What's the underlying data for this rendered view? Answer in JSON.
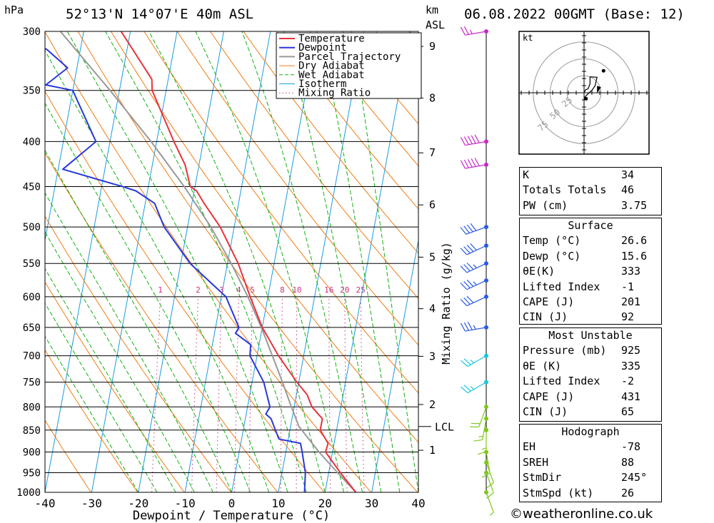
{
  "header": {
    "location": "52°13'N 14°07'E 40m ASL",
    "datetime": "06.08.2022 00GMT (Base: 12)",
    "p_unit": "hPa",
    "km_unit": "km",
    "asl": "ASL"
  },
  "footer": "©weatheronline.co.uk",
  "chart_data": {
    "type": "line",
    "title": "52°13'N 14°07'E 40m ASL",
    "xlabel": "Dewpoint / Temperature (°C)",
    "ylabel": "hPa",
    "y2label": "Mixing Ratio (g/kg)",
    "xlim": [
      -40,
      40
    ],
    "ylim": [
      1000,
      300
    ],
    "skew_deg_per_decade": 35,
    "x_ticks": [
      "-40",
      "-30",
      "-20",
      "-10",
      "0",
      "10",
      "20",
      "30",
      "40"
    ],
    "p_levels": [
      300,
      350,
      400,
      450,
      500,
      550,
      600,
      650,
      700,
      750,
      800,
      850,
      900,
      950,
      1000
    ],
    "km_ticks": [
      {
        "label": "9",
        "p": 312
      },
      {
        "label": "8",
        "p": 357
      },
      {
        "label": "7",
        "p": 412
      },
      {
        "label": "6",
        "p": 472
      },
      {
        "label": "5",
        "p": 541
      },
      {
        "label": "4",
        "p": 619
      },
      {
        "label": "3",
        "p": 701
      },
      {
        "label": "2",
        "p": 795
      },
      {
        "label": "1",
        "p": 896
      }
    ],
    "lcl": {
      "label": "LCL",
      "p": 842
    },
    "mixing_ratio_labels": [
      "1",
      "2",
      "3",
      "4",
      "5",
      "8",
      "10",
      "16",
      "20",
      "25"
    ],
    "mixing_ratio_values": [
      1,
      2,
      3,
      4,
      5,
      8,
      10,
      16,
      20,
      25
    ],
    "legend": [
      "Temperature",
      "Dewpoint",
      "Parcel Trajectory",
      "Dry Adiabat",
      "Wet Adiabat",
      "Isotherm",
      "Mixing Ratio"
    ],
    "colors": {
      "temperature": "#e8333a",
      "dewpoint": "#2838d9",
      "parcel": "#999999",
      "dry_adiabat": "#f07c14",
      "wet_adiabat": "#12b012",
      "isotherm": "#1a9ce0",
      "mixing_ratio": "#c8327c"
    },
    "series": [
      {
        "name": "Temperature",
        "p": [
          1000,
          950,
          900,
          880,
          850,
          825,
          800,
          775,
          750,
          700,
          650,
          600,
          550,
          500,
          470,
          455,
          450,
          425,
          400,
          350,
          340,
          300
        ],
        "values": [
          26.6,
          22.5,
          18.5,
          18.7,
          16.5,
          16.5,
          13.8,
          12.3,
          9.6,
          4.6,
          0.0,
          -3.8,
          -7.7,
          -13.0,
          -17.4,
          -19.5,
          -21.0,
          -23.0,
          -26.3,
          -33.0,
          -33.5,
          -42.0
        ]
      },
      {
        "name": "Dewpoint",
        "p": [
          1000,
          950,
          900,
          880,
          870,
          850,
          825,
          815,
          800,
          750,
          700,
          680,
          660,
          650,
          600,
          550,
          500,
          470,
          455,
          450,
          430,
          400,
          350,
          345,
          330,
          315,
          300
        ],
        "values": [
          15.6,
          15.0,
          13.5,
          12.8,
          8.0,
          6.9,
          5.5,
          4.2,
          4.8,
          2.5,
          -1.5,
          -1.8,
          -5.5,
          -5.0,
          -9.0,
          -18.0,
          -25.0,
          -28.0,
          -32.5,
          -35.5,
          -49.0,
          -43.0,
          -50.0,
          -56.0,
          -52.0,
          -57.0,
          -64.0
        ]
      },
      {
        "name": "Parcel Trajectory",
        "p": [
          1000,
          950,
          900,
          842,
          800,
          750,
          700,
          650,
          600,
          550,
          500,
          450,
          400,
          350,
          300
        ],
        "values": [
          26.6,
          21.9,
          17.1,
          11.8,
          9.4,
          6.5,
          3.3,
          -0.2,
          -4.3,
          -9.2,
          -15.0,
          -22.3,
          -31.2,
          -42.0,
          -55.0
        ]
      }
    ],
    "hodograph": {
      "unit_label": "kt",
      "ring_labels": [
        "25",
        "50",
        "75"
      ],
      "points": [
        [
          0.95,
          1.03
        ],
        [
          1.09,
          0.99
        ],
        [
          1.11,
          0.75
        ],
        [
          1.0,
          0.5
        ],
        [
          1.22,
          0.67
        ],
        [
          1.72,
          0.78
        ],
        [
          1.6,
          0.45
        ],
        [
          1.85,
          0.5
        ],
        [
          1.52,
          0.25
        ],
        [
          1.75,
          0.35
        ],
        [
          1.55,
          1.45
        ],
        [
          1.9,
          1.05
        ]
      ]
    },
    "wind_barbs": [
      {
        "p": 300,
        "speed_kt": 25,
        "dir_deg": 260
      },
      {
        "p": 400,
        "speed_kt": 50,
        "dir_deg": 260
      },
      {
        "p": 425,
        "speed_kt": 50,
        "dir_deg": 260
      },
      {
        "p": 500,
        "speed_kt": 40,
        "dir_deg": 250
      },
      {
        "p": 525,
        "speed_kt": 40,
        "dir_deg": 245
      },
      {
        "p": 550,
        "speed_kt": 35,
        "dir_deg": 245
      },
      {
        "p": 575,
        "speed_kt": 35,
        "dir_deg": 245
      },
      {
        "p": 600,
        "speed_kt": 30,
        "dir_deg": 245
      },
      {
        "p": 650,
        "speed_kt": 35,
        "dir_deg": 260
      },
      {
        "p": 700,
        "speed_kt": 25,
        "dir_deg": 240
      },
      {
        "p": 750,
        "speed_kt": 25,
        "dir_deg": 240
      },
      {
        "p": 800,
        "speed_kt": 20,
        "dir_deg": 200
      },
      {
        "p": 825,
        "speed_kt": 15,
        "dir_deg": 190
      },
      {
        "p": 850,
        "speed_kt": 15,
        "dir_deg": 180
      },
      {
        "p": 900,
        "speed_kt": 10,
        "dir_deg": 170
      },
      {
        "p": 925,
        "speed_kt": 10,
        "dir_deg": 160
      },
      {
        "p": 950,
        "speed_kt": 10,
        "dir_deg": 160
      },
      {
        "p": 1000,
        "speed_kt": 5,
        "dir_deg": 160
      }
    ]
  },
  "indices": {
    "rows": [
      {
        "label": "K",
        "value": "34"
      },
      {
        "label": "Totals Totals",
        "value": "46"
      },
      {
        "label": "PW (cm)",
        "value": "3.75"
      }
    ],
    "surface": {
      "title": "Surface",
      "rows": [
        {
          "label": "Temp (°C)",
          "value": "26.6"
        },
        {
          "label": "Dewp (°C)",
          "value": "15.6"
        },
        {
          "label": "θE(K)",
          "value": "333"
        },
        {
          "label": "Lifted Index",
          "value": "-1"
        },
        {
          "label": "CAPE (J)",
          "value": "201"
        },
        {
          "label": "CIN (J)",
          "value": "92"
        }
      ]
    },
    "unstable": {
      "title": "Most Unstable",
      "rows": [
        {
          "label": "Pressure (mb)",
          "value": "925"
        },
        {
          "label": "θE (K)",
          "value": "335"
        },
        {
          "label": "Lifted Index",
          "value": "-2"
        },
        {
          "label": "CAPE (J)",
          "value": "431"
        },
        {
          "label": "CIN (J)",
          "value": "65"
        }
      ]
    },
    "hodograph": {
      "title": "Hodograph",
      "rows": [
        {
          "label": "EH",
          "value": "-78"
        },
        {
          "label": "SREH",
          "value": "88"
        },
        {
          "label": "StmDir",
          "value": "245°"
        },
        {
          "label": "StmSpd (kt)",
          "value": "26"
        }
      ]
    }
  }
}
